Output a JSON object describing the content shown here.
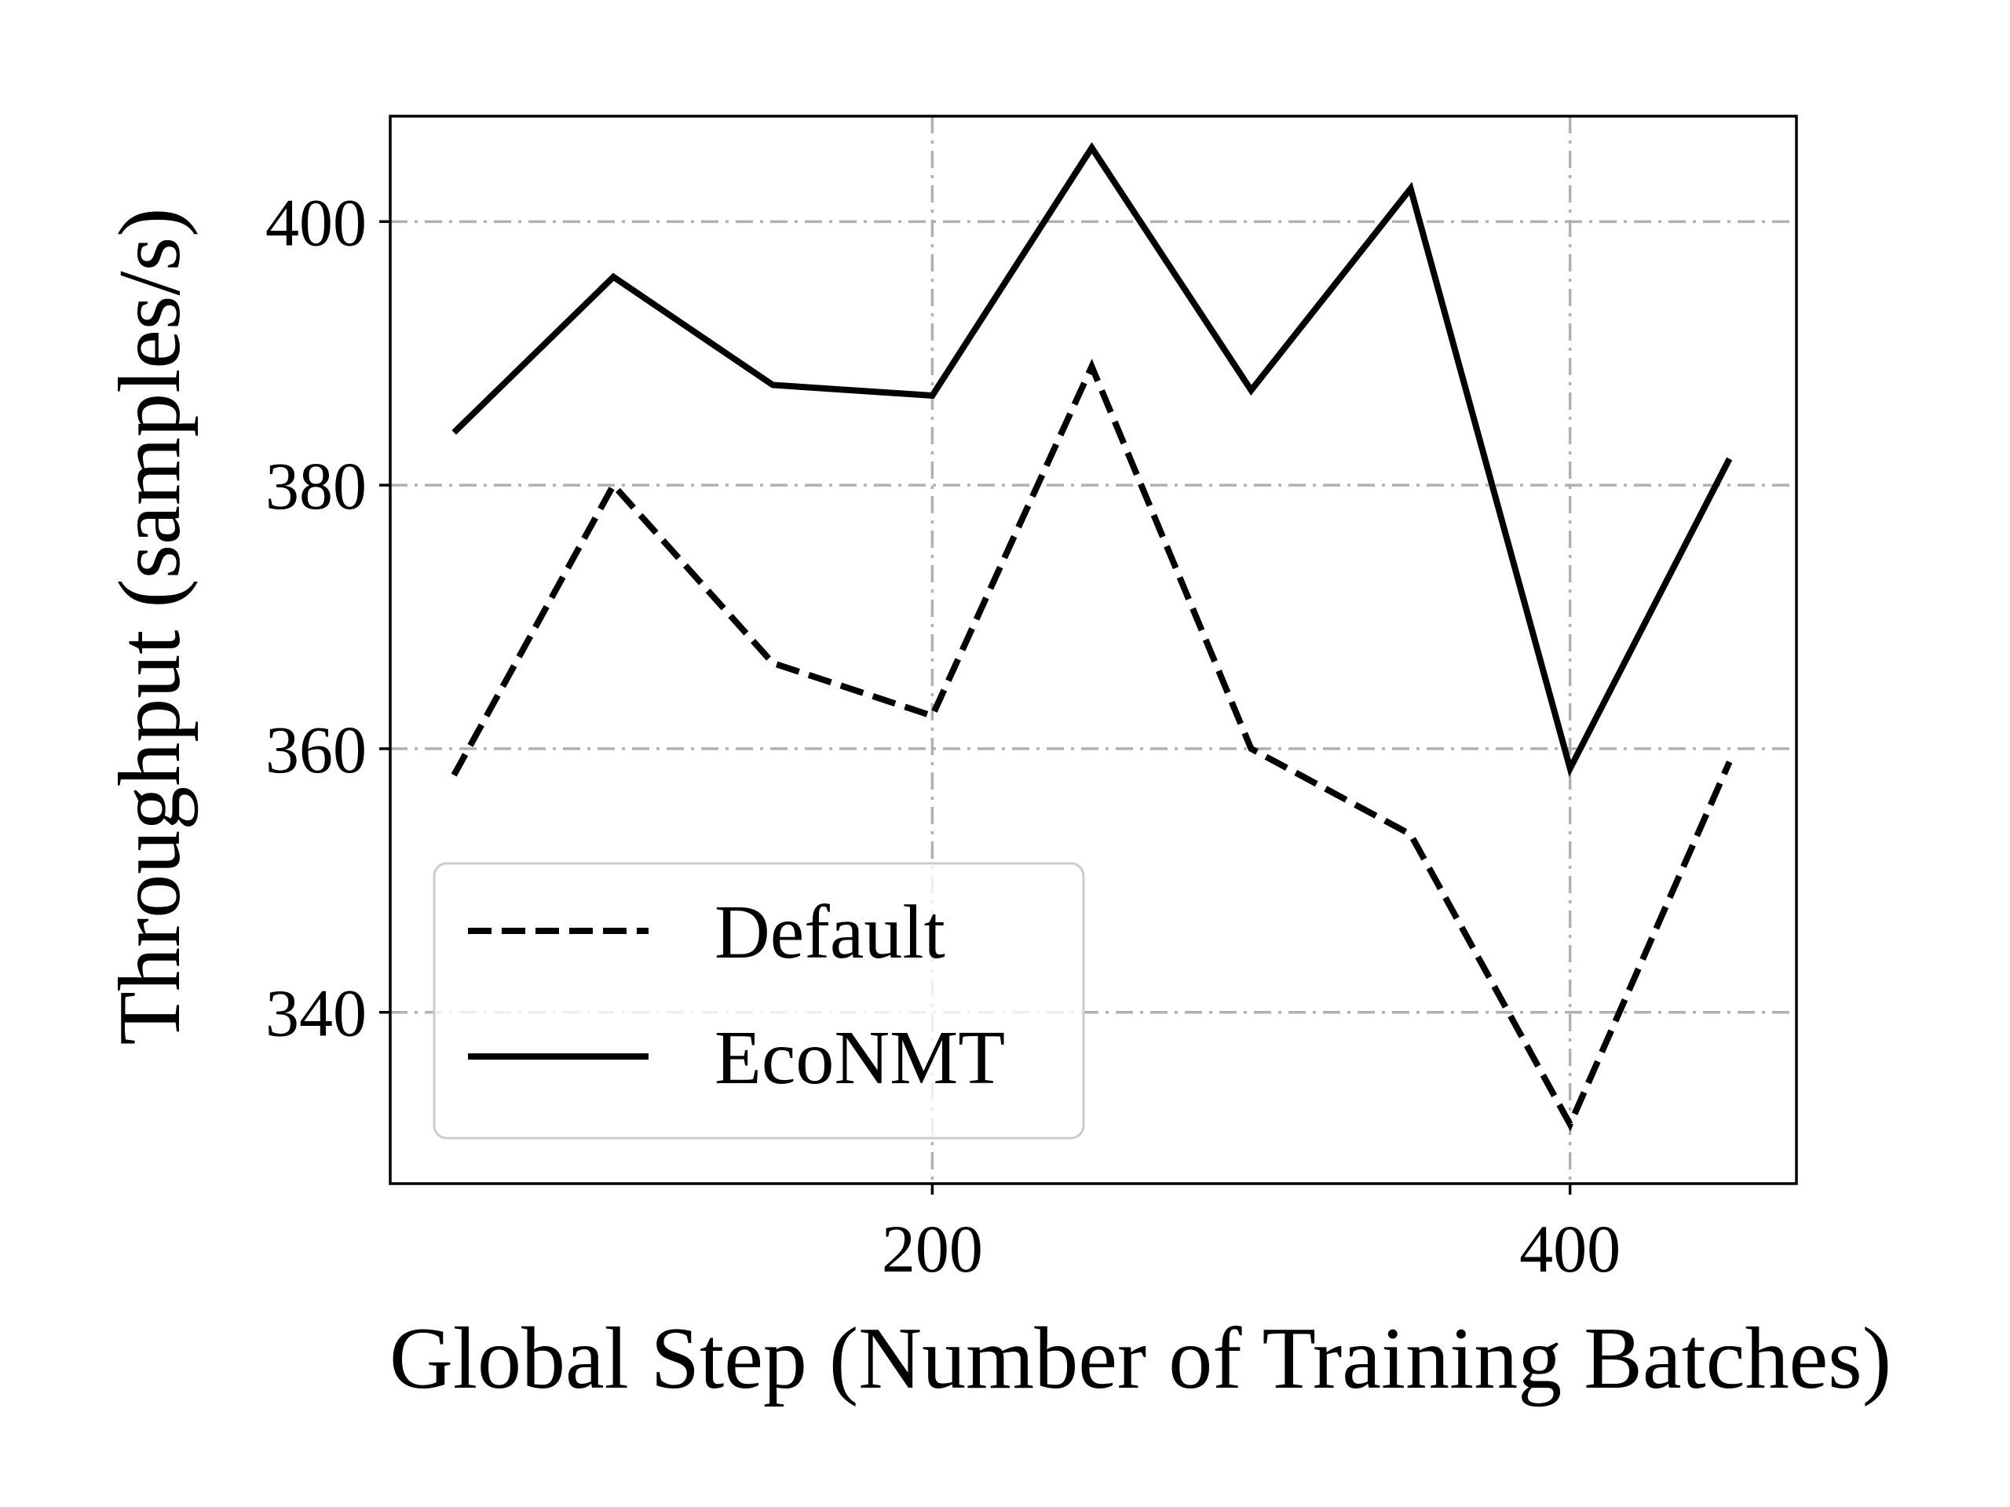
{
  "chart_data": {
    "type": "line",
    "title": "",
    "xlabel": "Global Step (Number of Training Batches)",
    "ylabel": "Throughput (samples/s)",
    "xlim": [
      30,
      471
    ],
    "ylim": [
      327,
      408
    ],
    "xticks": [
      200,
      400
    ],
    "yticks": [
      340,
      360,
      380,
      400
    ],
    "grid": true,
    "legend_position": "lower-left",
    "x": [
      50,
      100,
      150,
      200,
      250,
      300,
      350,
      400,
      450
    ],
    "series": [
      {
        "name": "Default",
        "style": "dashed",
        "color": "#000000",
        "values": [
          358,
          380,
          366.5,
          362.5,
          389,
          360,
          353.5,
          331.5,
          359
        ]
      },
      {
        "name": "EcoNMT",
        "style": "solid",
        "color": "#000000",
        "values": [
          384,
          395.8,
          387.6,
          386.8,
          405.6,
          387.2,
          402.5,
          358.5,
          382
        ]
      }
    ]
  }
}
